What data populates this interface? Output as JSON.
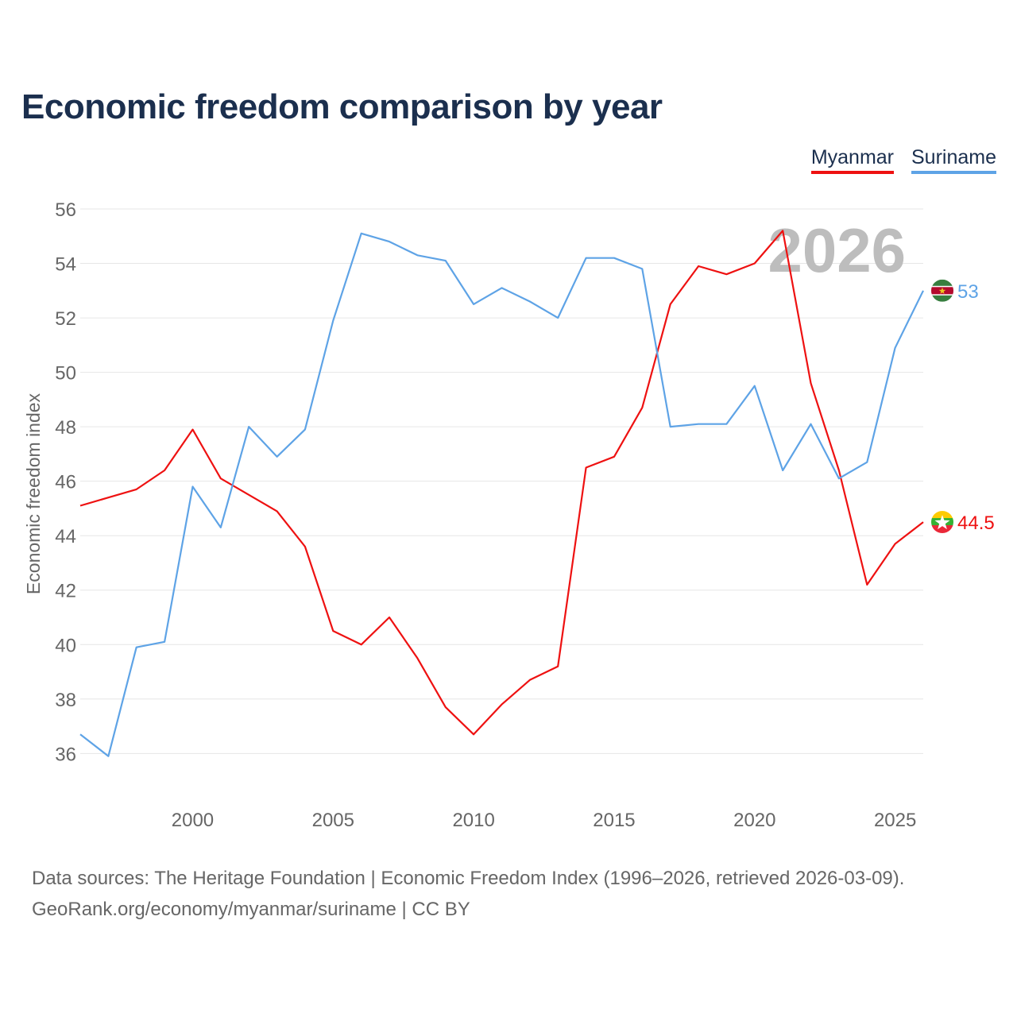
{
  "title": "Economic freedom comparison by year",
  "legend": {
    "myanmar": "Myanmar",
    "suriname": "Suriname"
  },
  "year_watermark": "2026",
  "footer": {
    "line1": "Data sources: The Heritage Foundation | Economic Freedom Index (1996–2026, retrieved 2026-03-09).",
    "line2": "GeoRank.org/economy/myanmar/suriname | CC BY"
  },
  "colors": {
    "myanmar": "#ee1111",
    "suriname": "#5ea3e6",
    "grid": "#e6e6e6",
    "axis_text": "#666666"
  },
  "chart_data": {
    "type": "line",
    "title": "Economic freedom comparison by year",
    "xlabel": "",
    "ylabel": "Economic freedom index",
    "xlim": [
      1996,
      2026
    ],
    "ylim": [
      34.2,
      56
    ],
    "yticks": [
      36,
      38,
      40,
      42,
      44,
      46,
      48,
      50,
      52,
      54,
      56
    ],
    "xticks": [
      2000,
      2005,
      2010,
      2015,
      2020,
      2025
    ],
    "x": [
      1996,
      1997,
      1998,
      1999,
      2000,
      2001,
      2002,
      2003,
      2004,
      2005,
      2006,
      2007,
      2008,
      2009,
      2010,
      2011,
      2012,
      2013,
      2014,
      2015,
      2016,
      2017,
      2018,
      2019,
      2020,
      2021,
      2022,
      2023,
      2024,
      2025,
      2026
    ],
    "series": [
      {
        "name": "Myanmar",
        "color": "#ee1111",
        "end_label": "44.5",
        "values": [
          45.1,
          45.4,
          45.7,
          46.4,
          47.9,
          46.1,
          45.5,
          44.9,
          43.6,
          40.5,
          40.0,
          41.0,
          39.5,
          37.7,
          36.7,
          37.8,
          38.7,
          39.2,
          46.5,
          46.9,
          48.7,
          52.5,
          53.9,
          53.6,
          54.0,
          55.2,
          49.6,
          46.4,
          42.2,
          43.7,
          44.5
        ]
      },
      {
        "name": "Suriname",
        "color": "#5ea3e6",
        "end_label": "53",
        "values": [
          36.7,
          35.9,
          39.9,
          40.1,
          45.8,
          44.3,
          48.0,
          46.9,
          47.9,
          51.9,
          55.1,
          54.8,
          54.3,
          54.1,
          52.5,
          53.1,
          52.6,
          52.0,
          54.2,
          54.2,
          53.8,
          48.0,
          48.1,
          48.1,
          49.5,
          46.4,
          48.1,
          46.1,
          46.7,
          50.9,
          53.0
        ]
      }
    ]
  }
}
